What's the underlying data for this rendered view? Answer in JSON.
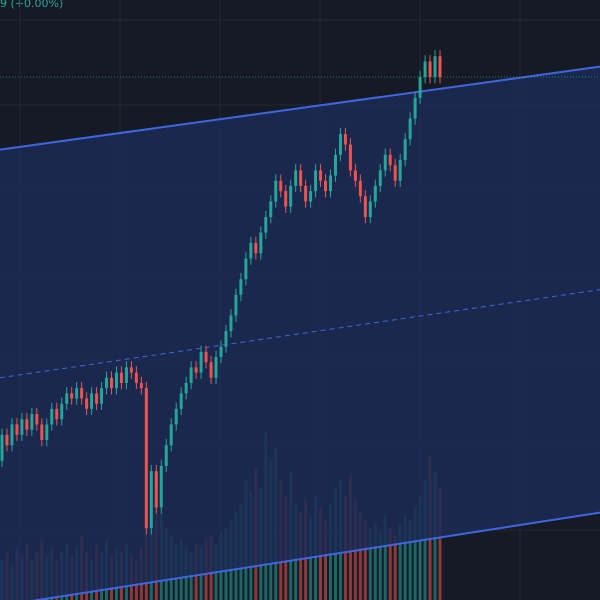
{
  "header": {
    "change_label": "9 (+0.00%)"
  },
  "colors": {
    "background": "#161a25",
    "channel_fill": "#1c2b56",
    "channel_line": "#3f66e0",
    "median_line": "#3f66e0",
    "up": "#26a69a",
    "down": "#ef5350",
    "grid": "#232838",
    "last_price_line": "#26a69a"
  },
  "chart_data": {
    "type": "candlestick",
    "has_volume": true,
    "grid": true,
    "channel": {
      "type": "regression_channel",
      "upper": {
        "start": 0.83,
        "end": 0.99
      },
      "median": {
        "start": 0.39,
        "end": 0.56
      },
      "lower": {
        "start": -0.05,
        "end": 0.13
      }
    },
    "last_price": 0.97,
    "price_range": [
      0,
      1.08
    ],
    "candles": [
      [
        0.23,
        0.28
      ],
      [
        0.28,
        0.26
      ],
      [
        0.26,
        0.3
      ],
      [
        0.3,
        0.28
      ],
      [
        0.28,
        0.31
      ],
      [
        0.31,
        0.29
      ],
      [
        0.29,
        0.32
      ],
      [
        0.32,
        0.3
      ],
      [
        0.3,
        0.27
      ],
      [
        0.27,
        0.3
      ],
      [
        0.3,
        0.33
      ],
      [
        0.33,
        0.31
      ],
      [
        0.31,
        0.34
      ],
      [
        0.34,
        0.36
      ],
      [
        0.36,
        0.35
      ],
      [
        0.35,
        0.37
      ],
      [
        0.37,
        0.35
      ],
      [
        0.35,
        0.33
      ],
      [
        0.33,
        0.36
      ],
      [
        0.36,
        0.34
      ],
      [
        0.34,
        0.37
      ],
      [
        0.37,
        0.39
      ],
      [
        0.39,
        0.37
      ],
      [
        0.37,
        0.4
      ],
      [
        0.4,
        0.38
      ],
      [
        0.38,
        0.41
      ],
      [
        0.41,
        0.4
      ],
      [
        0.4,
        0.38
      ],
      [
        0.38,
        0.37
      ],
      [
        0.37,
        0.1
      ],
      [
        0.1,
        0.21
      ],
      [
        0.21,
        0.14
      ],
      [
        0.14,
        0.22
      ],
      [
        0.22,
        0.26
      ],
      [
        0.26,
        0.3
      ],
      [
        0.3,
        0.33
      ],
      [
        0.33,
        0.36
      ],
      [
        0.36,
        0.38
      ],
      [
        0.38,
        0.41
      ],
      [
        0.41,
        0.4
      ],
      [
        0.4,
        0.44
      ],
      [
        0.44,
        0.42
      ],
      [
        0.42,
        0.39
      ],
      [
        0.39,
        0.43
      ],
      [
        0.43,
        0.45
      ],
      [
        0.45,
        0.48
      ],
      [
        0.48,
        0.51
      ],
      [
        0.51,
        0.55
      ],
      [
        0.55,
        0.58
      ],
      [
        0.58,
        0.62
      ],
      [
        0.62,
        0.65
      ],
      [
        0.65,
        0.63
      ],
      [
        0.63,
        0.67
      ],
      [
        0.67,
        0.7
      ],
      [
        0.7,
        0.73
      ],
      [
        0.73,
        0.77
      ],
      [
        0.77,
        0.75
      ],
      [
        0.75,
        0.72
      ],
      [
        0.72,
        0.76
      ],
      [
        0.76,
        0.79
      ],
      [
        0.79,
        0.76
      ],
      [
        0.76,
        0.73
      ],
      [
        0.73,
        0.75
      ],
      [
        0.75,
        0.79
      ],
      [
        0.79,
        0.77
      ],
      [
        0.77,
        0.75
      ],
      [
        0.75,
        0.78
      ],
      [
        0.78,
        0.82
      ],
      [
        0.82,
        0.86
      ],
      [
        0.86,
        0.84
      ],
      [
        0.84,
        0.79
      ],
      [
        0.79,
        0.77
      ],
      [
        0.77,
        0.74
      ],
      [
        0.74,
        0.7
      ],
      [
        0.7,
        0.73
      ],
      [
        0.73,
        0.76
      ],
      [
        0.76,
        0.79
      ],
      [
        0.79,
        0.82
      ],
      [
        0.82,
        0.8
      ],
      [
        0.8,
        0.77
      ],
      [
        0.77,
        0.81
      ],
      [
        0.81,
        0.85
      ],
      [
        0.85,
        0.89
      ],
      [
        0.89,
        0.93
      ],
      [
        0.93,
        0.97
      ],
      [
        0.97,
        1.0
      ],
      [
        1.0,
        0.97
      ],
      [
        0.97,
        1.01
      ],
      [
        1.01,
        0.97
      ]
    ],
    "volume": [
      0.1,
      0.12,
      0.09,
      0.13,
      0.11,
      0.14,
      0.1,
      0.12,
      0.15,
      0.11,
      0.13,
      0.1,
      0.12,
      0.14,
      0.11,
      0.13,
      0.16,
      0.12,
      0.1,
      0.14,
      0.12,
      0.15,
      0.11,
      0.13,
      0.12,
      0.14,
      0.11,
      0.1,
      0.13,
      0.36,
      0.28,
      0.31,
      0.22,
      0.18,
      0.16,
      0.14,
      0.15,
      0.13,
      0.12,
      0.14,
      0.13,
      0.15,
      0.16,
      0.14,
      0.17,
      0.18,
      0.2,
      0.22,
      0.24,
      0.3,
      0.27,
      0.33,
      0.28,
      0.42,
      0.35,
      0.38,
      0.3,
      0.26,
      0.32,
      0.24,
      0.22,
      0.25,
      0.21,
      0.26,
      0.23,
      0.2,
      0.24,
      0.28,
      0.3,
      0.26,
      0.31,
      0.25,
      0.22,
      0.2,
      0.18,
      0.19,
      0.17,
      0.21,
      0.18,
      0.16,
      0.19,
      0.21,
      0.2,
      0.23,
      0.26,
      0.3,
      0.36,
      0.32,
      0.28
    ]
  }
}
